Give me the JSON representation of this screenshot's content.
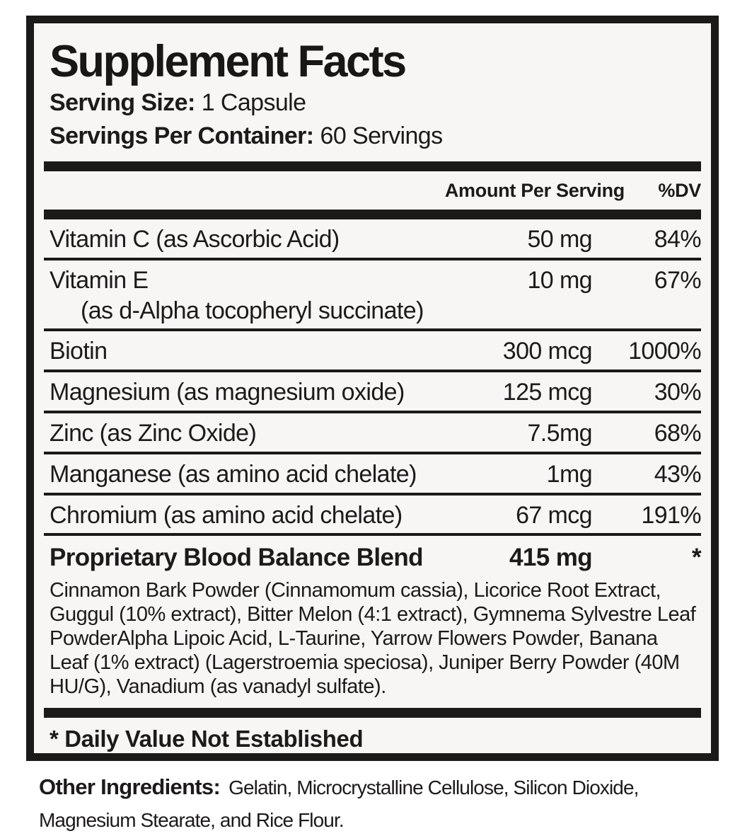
{
  "panel": {
    "title": "Supplement Facts",
    "serving_size_label": "Serving Size:",
    "serving_size_value": "1 Capsule",
    "servings_per_container_label": "Servings Per Container:",
    "servings_per_container_value": "60 Servings"
  },
  "table": {
    "amount_header": "Amount Per Serving",
    "dv_header": "%DV",
    "rows": [
      {
        "name": "Vitamin C (as Ascorbic Acid)",
        "amount": "50 mg",
        "dv": "84%"
      },
      {
        "name": "Vitamin E",
        "sub": "(as d-Alpha tocopheryl succinate)",
        "amount": "10 mg",
        "dv": "67%"
      },
      {
        "name": "Biotin",
        "amount": "300 mcg",
        "dv": "1000%"
      },
      {
        "name": "Magnesium (as magnesium oxide)",
        "amount": "125 mcg",
        "dv": "30%"
      },
      {
        "name": "Zinc (as Zinc Oxide)",
        "amount": "7.5mg",
        "dv": "68%"
      },
      {
        "name": "Manganese (as amino acid chelate)",
        "amount": "1mg",
        "dv": "43%"
      },
      {
        "name": "Chromium (as amino acid chelate)",
        "amount": "67 mcg",
        "dv": "191%"
      }
    ],
    "blend": {
      "name": "Proprietary Blood Balance Blend",
      "amount": "415 mg",
      "dv": "*",
      "description": "Cinnamon Bark Powder (Cinnamomum cassia), Licorice Root Extract, Guggul (10% extract), Bitter Melon (4:1 extract), Gymnema Sylvestre Leaf PowderAlpha Lipoic Acid, L-Taurine, Yarrow Flowers Powder, Banana Leaf (1% extract) (Lagerstroemia speciosa), Juniper Berry Powder (40M HU/G), Vanadium (as vanadyl sulfate)."
    },
    "footnote": "* Daily Value Not Established"
  },
  "other_ingredients": {
    "label": "Other Ingredients:",
    "value": "Gelatin, Microcrystalline Cellulose, Silicon Dioxide, Magnesium Stearate, and Rice Flour."
  },
  "colors": {
    "text": "#1c1b1a",
    "rule": "#1b1a19",
    "panel_background": "#f7f6f5",
    "page_background": "#ffffff"
  }
}
